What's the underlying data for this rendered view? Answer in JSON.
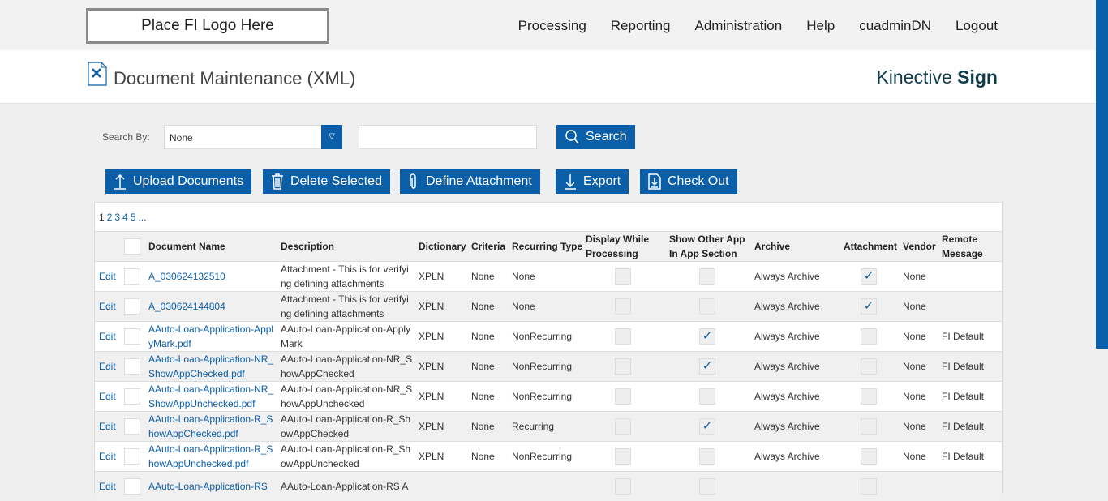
{
  "topbar": {
    "logo": "Place FI Logo Here",
    "nav": [
      "Processing",
      "Reporting",
      "Administration",
      "Help",
      "cuadminDN",
      "Logout"
    ]
  },
  "header": {
    "title": "Document Maintenance (XML)",
    "brand_light": "Kinective",
    "brand_bold": "Sign"
  },
  "search": {
    "label": "Search By:",
    "select_value": "None",
    "input_value": "",
    "button": "Search"
  },
  "toolbar": {
    "upload": "Upload Documents",
    "delete": "Delete Selected",
    "define": "Define Attachment",
    "export": "Export",
    "checkout": "Check Out"
  },
  "pager": [
    "1",
    "2",
    "3",
    "4",
    "5",
    "..."
  ],
  "columns": [
    "Document Name",
    "Description",
    "Dictionary",
    "Criteria",
    "Recurring Type",
    "Display While Processing",
    "Show Other App In App Section",
    "Archive",
    "Attachment",
    "Vendor",
    "Remote Message"
  ],
  "edit_label": "Edit",
  "rows": [
    {
      "name": "A_030624132510",
      "desc": "Attachment - This is for verifying defining attachments",
      "dict": "XPLN",
      "criteria": "None",
      "recurring": "None",
      "display": false,
      "show": false,
      "archive": "Always Archive",
      "attach": true,
      "vendor": "None",
      "remote": ""
    },
    {
      "name": "A_030624144804",
      "desc": "Attachment - This is for verifying defining attachments",
      "dict": "XPLN",
      "criteria": "None",
      "recurring": "None",
      "display": false,
      "show": false,
      "archive": "Always Archive",
      "attach": true,
      "vendor": "None",
      "remote": ""
    },
    {
      "name": "AAuto-Loan-Application-ApplyMark.pdf",
      "desc": "AAuto-Loan-Application-ApplyMark",
      "dict": "XPLN",
      "criteria": "None",
      "recurring": "NonRecurring",
      "display": false,
      "show": true,
      "archive": "Always Archive",
      "attach": false,
      "vendor": "None",
      "remote": "FI Default"
    },
    {
      "name": "AAuto-Loan-Application-NR_ShowAppChecked.pdf",
      "desc": "AAuto-Loan-Application-NR_ShowAppChecked",
      "dict": "XPLN",
      "criteria": "None",
      "recurring": "NonRecurring",
      "display": false,
      "show": true,
      "archive": "Always Archive",
      "attach": false,
      "vendor": "None",
      "remote": "FI Default"
    },
    {
      "name": "AAuto-Loan-Application-NR_ShowAppUnchecked.pdf",
      "desc": "AAuto-Loan-Application-NR_ShowAppUnchecked",
      "dict": "XPLN",
      "criteria": "None",
      "recurring": "NonRecurring",
      "display": false,
      "show": false,
      "archive": "Always Archive",
      "attach": false,
      "vendor": "None",
      "remote": "FI Default"
    },
    {
      "name": "AAuto-Loan-Application-R_ShowAppChecked.pdf",
      "desc": "AAuto-Loan-Application-R_ShowAppChecked",
      "dict": "XPLN",
      "criteria": "None",
      "recurring": "Recurring",
      "display": false,
      "show": true,
      "archive": "Always Archive",
      "attach": false,
      "vendor": "None",
      "remote": "FI Default"
    },
    {
      "name": "AAuto-Loan-Application-R_ShowAppUnchecked.pdf",
      "desc": "AAuto-Loan-Application-R_ShowAppUnchecked",
      "dict": "XPLN",
      "criteria": "None",
      "recurring": "NonRecurring",
      "display": false,
      "show": false,
      "archive": "Always Archive",
      "attach": false,
      "vendor": "None",
      "remote": "FI Default"
    },
    {
      "name": "AAuto-Loan-Application-RS",
      "desc": "AAuto-Loan-Application-RS A",
      "dict": "",
      "criteria": "",
      "recurring": "",
      "display": false,
      "show": false,
      "archive": "",
      "attach": false,
      "vendor": "",
      "remote": ""
    }
  ],
  "colors": {
    "accent": "#0b5ea8",
    "brand": "#0f3a4a"
  }
}
